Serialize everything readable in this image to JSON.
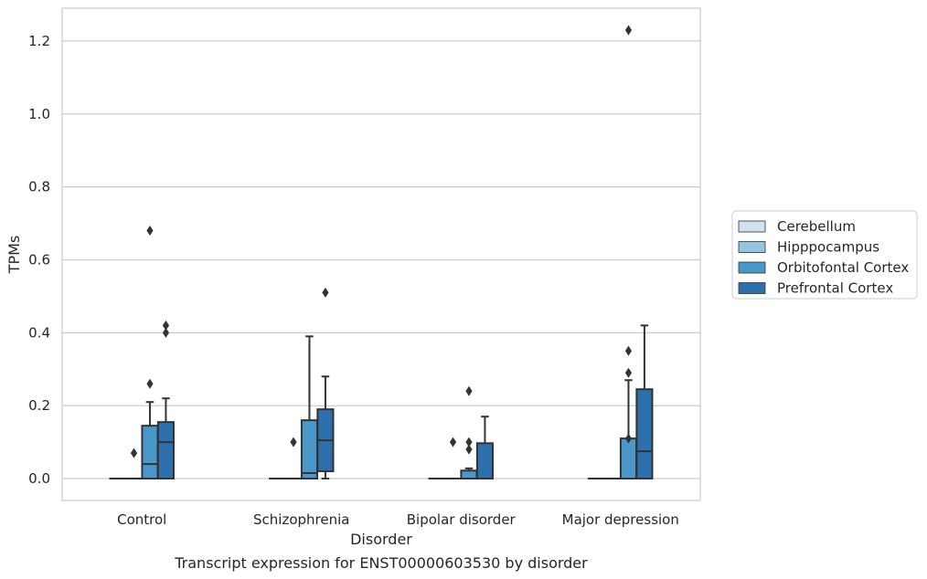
{
  "chart_data": {
    "type": "box",
    "title": "",
    "caption": "Transcript expression for ENST00000603530 by disorder",
    "xlabel": "Disorder",
    "ylabel": "TPMs",
    "ylim": [
      -0.06,
      1.29
    ],
    "yticks": [
      0.0,
      0.2,
      0.4,
      0.6,
      0.8,
      1.0,
      1.2
    ],
    "ytick_labels": [
      "0.0",
      "0.2",
      "0.4",
      "0.6",
      "0.8",
      "1.0",
      "1.2"
    ],
    "grid": "horizontal",
    "legend_position": "right",
    "categories": [
      "Control",
      "Schizophrenia",
      "Bipolar disorder",
      "Major depression"
    ],
    "series": [
      {
        "name": "Cerebellum",
        "color": "#d0e1f2",
        "boxes": [
          {
            "min": 0,
            "q1": 0,
            "median": 0,
            "q3": 0,
            "max": 0,
            "outliers": []
          },
          {
            "min": 0,
            "q1": 0,
            "median": 0,
            "q3": 0,
            "max": 0,
            "outliers": []
          },
          {
            "min": 0,
            "q1": 0,
            "median": 0,
            "q3": 0,
            "max": 0,
            "outliers": []
          },
          {
            "min": 0,
            "q1": 0,
            "median": 0,
            "q3": 0,
            "max": 0,
            "outliers": []
          }
        ]
      },
      {
        "name": "Hipppocampus",
        "color": "#94c4df",
        "boxes": [
          {
            "min": 0,
            "q1": 0,
            "median": 0,
            "q3": 0,
            "max": 0,
            "outliers": [
              0.07
            ]
          },
          {
            "min": 0,
            "q1": 0,
            "median": 0,
            "q3": 0,
            "max": 0,
            "outliers": [
              0.1
            ]
          },
          {
            "min": 0,
            "q1": 0,
            "median": 0,
            "q3": 0,
            "max": 0,
            "outliers": [
              0.1
            ]
          },
          {
            "min": 0,
            "q1": 0,
            "median": 0,
            "q3": 0,
            "max": 0,
            "outliers": []
          }
        ]
      },
      {
        "name": "Orbitofontal Cortex",
        "color": "#4a98c9",
        "boxes": [
          {
            "min": 0,
            "q1": 0,
            "median": 0.04,
            "q3": 0.145,
            "max": 0.21,
            "outliers": [
              0.26,
              0.68
            ]
          },
          {
            "min": 0,
            "q1": 0,
            "median": 0.015,
            "q3": 0.16,
            "max": 0.39,
            "outliers": []
          },
          {
            "min": 0,
            "q1": 0,
            "median": 0.0,
            "q3": 0.022,
            "max": 0.028,
            "outliers": [
              0.08,
              0.1,
              0.24
            ]
          },
          {
            "min": 0,
            "q1": 0,
            "median": 0,
            "q3": 0.11,
            "max": 0.27,
            "outliers": [
              0.11,
              0.29,
              0.35,
              1.23
            ]
          }
        ]
      },
      {
        "name": "Prefrontal Cortex",
        "color": "#2e6fae",
        "boxes": [
          {
            "min": 0,
            "q1": 0,
            "median": 0.1,
            "q3": 0.155,
            "max": 0.22,
            "outliers": [
              0.4,
              0.42
            ]
          },
          {
            "min": 0,
            "q1": 0.02,
            "median": 0.105,
            "q3": 0.19,
            "max": 0.28,
            "outliers": [
              0.51
            ]
          },
          {
            "min": 0,
            "q1": 0,
            "median": 0,
            "q3": 0.097,
            "max": 0.17,
            "outliers": []
          },
          {
            "min": 0,
            "q1": 0,
            "median": 0.075,
            "q3": 0.245,
            "max": 0.42,
            "outliers": []
          }
        ]
      }
    ]
  }
}
